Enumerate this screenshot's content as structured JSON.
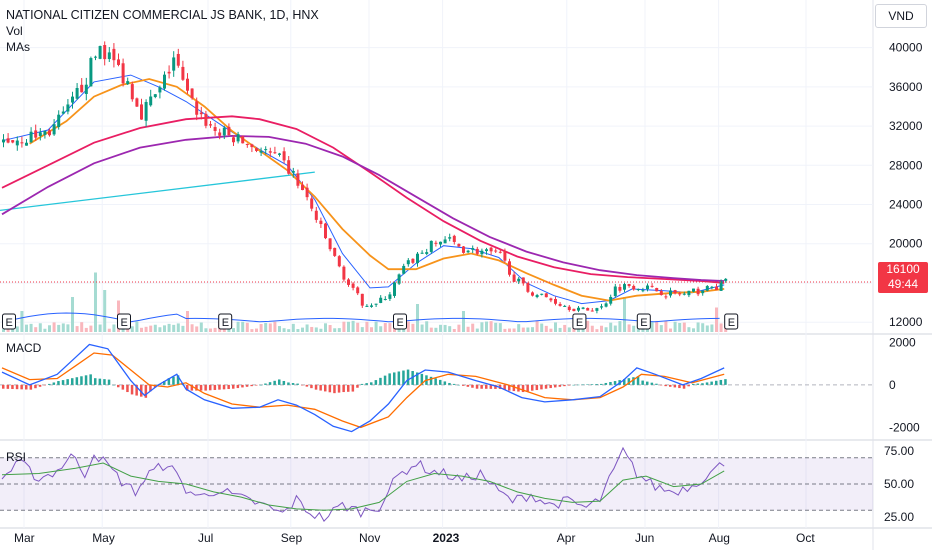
{
  "header": {
    "title": "NATIONAL CITIZEN COMMERCIAL JS BANK, 1D, HNX",
    "vol_label": "Vol",
    "mas_label": "MAs",
    "currency": "VND"
  },
  "price_badge": {
    "price": "16100",
    "countdown": "49:44"
  },
  "colors": {
    "candle_up": "#089981",
    "candle_down": "#f23645",
    "ma_fast": "#2962ff",
    "ma_orange": "#f7931a",
    "ma_red": "#e91e63",
    "ma_purple": "#9c27b0",
    "trendline": "#26c6da",
    "rsi_line": "#7e57c2",
    "rsi_ma": "#43a047",
    "macd_line": "#2962ff",
    "signal_line": "#ff6d00"
  },
  "chart_data": [
    {
      "type": "candlestick",
      "ylim": [
        11000,
        42000
      ],
      "y_ticks": [
        12000,
        16000,
        20000,
        24000,
        28000,
        32000,
        36000,
        40000
      ],
      "x_ticks": [
        "Mar",
        "May",
        "Jul",
        "Sep",
        "Nov",
        "2023",
        "Apr",
        "Jun",
        "Aug",
        "Oct"
      ],
      "last_price": 16100,
      "earnings_markers": [
        "E",
        "E",
        "E",
        "E",
        "E",
        "E",
        "E"
      ],
      "close_path": [
        [
          0,
          30500
        ],
        [
          5,
          30800
        ],
        [
          10,
          31500
        ],
        [
          14,
          33500
        ],
        [
          18,
          37000
        ],
        [
          21,
          40200
        ],
        [
          24,
          38500
        ],
        [
          27,
          36500
        ],
        [
          30,
          33500
        ],
        [
          34,
          35500
        ],
        [
          37,
          39000
        ],
        [
          40,
          35000
        ],
        [
          43,
          33000
        ],
        [
          46,
          31500
        ],
        [
          50,
          30800
        ],
        [
          55,
          29800
        ],
        [
          60,
          28500
        ],
        [
          63,
          27000
        ],
        [
          66,
          24500
        ],
        [
          69,
          21500
        ],
        [
          72,
          18500
        ],
        [
          75,
          15800
        ],
        [
          78,
          14000
        ],
        [
          81,
          13800
        ],
        [
          84,
          15000
        ],
        [
          87,
          17500
        ],
        [
          90,
          18800
        ],
        [
          93,
          19800
        ],
        [
          96,
          20500
        ],
        [
          100,
          19500
        ],
        [
          104,
          19200
        ],
        [
          108,
          18800
        ],
        [
          111,
          16500
        ],
        [
          114,
          15200
        ],
        [
          118,
          14500
        ],
        [
          122,
          13700
        ],
        [
          126,
          13200
        ],
        [
          130,
          13500
        ],
        [
          133,
          15500
        ],
        [
          136,
          15800
        ],
        [
          140,
          15500
        ],
        [
          144,
          15000
        ],
        [
          148,
          14800
        ],
        [
          151,
          15200
        ],
        [
          155,
          15600
        ],
        [
          157,
          16100
        ]
      ],
      "volume_spikes": [
        [
          4,
          0.3
        ],
        [
          15,
          0.5
        ],
        [
          20,
          0.85
        ],
        [
          22,
          0.6
        ],
        [
          25,
          0.45
        ],
        [
          40,
          0.3
        ],
        [
          90,
          0.4
        ],
        [
          100,
          0.3
        ],
        [
          135,
          0.5
        ],
        [
          155,
          0.35
        ]
      ],
      "moving_averages": [
        {
          "color": "ma_fast",
          "values": [
            [
              0,
              30500
            ],
            [
              10,
              31600
            ],
            [
              20,
              36500
            ],
            [
              28,
              37200
            ],
            [
              34,
              36000
            ],
            [
              40,
              34500
            ],
            [
              48,
              32000
            ],
            [
              56,
              29600
            ],
            [
              62,
              28000
            ],
            [
              68,
              24500
            ],
            [
              74,
              19000
            ],
            [
              80,
              15500
            ],
            [
              84,
              15600
            ],
            [
              90,
              18000
            ],
            [
              96,
              19800
            ],
            [
              102,
              19500
            ],
            [
              108,
              18600
            ],
            [
              114,
              16000
            ],
            [
              120,
              14700
            ],
            [
              126,
              13900
            ],
            [
              132,
              14200
            ],
            [
              137,
              15400
            ],
            [
              144,
              15200
            ],
            [
              150,
              15000
            ],
            [
              157,
              15800
            ]
          ]
        },
        {
          "color": "ma_orange",
          "values": [
            [
              6,
              30200
            ],
            [
              14,
              32500
            ],
            [
              20,
              35000
            ],
            [
              26,
              36200
            ],
            [
              32,
              36800
            ],
            [
              38,
              36000
            ],
            [
              44,
              34000
            ],
            [
              50,
              31500
            ],
            [
              56,
              29500
            ],
            [
              62,
              27500
            ],
            [
              68,
              24800
            ],
            [
              74,
              21500
            ],
            [
              80,
              18800
            ],
            [
              84,
              17400
            ],
            [
              90,
              17400
            ],
            [
              96,
              18500
            ],
            [
              102,
              19000
            ],
            [
              108,
              18300
            ],
            [
              114,
              17000
            ],
            [
              120,
              15800
            ],
            [
              126,
              14700
            ],
            [
              132,
              14200
            ],
            [
              138,
              14700
            ],
            [
              146,
              15000
            ],
            [
              152,
              15100
            ],
            [
              157,
              15400
            ]
          ]
        },
        {
          "color": "ma_red",
          "values": [
            [
              0,
              25700
            ],
            [
              10,
              28000
            ],
            [
              20,
              30300
            ],
            [
              30,
              31800
            ],
            [
              40,
              32700
            ],
            [
              50,
              33000
            ],
            [
              56,
              32700
            ],
            [
              64,
              31700
            ],
            [
              72,
              29800
            ],
            [
              80,
              27300
            ],
            [
              88,
              24700
            ],
            [
              96,
              22300
            ],
            [
              104,
              20300
            ],
            [
              112,
              18700
            ],
            [
              120,
              17600
            ],
            [
              128,
              16900
            ],
            [
              136,
              16600
            ],
            [
              144,
              16400
            ],
            [
              152,
              16200
            ],
            [
              157,
              16000
            ]
          ]
        },
        {
          "color": "ma_purple",
          "values": [
            [
              0,
              23000
            ],
            [
              10,
              25800
            ],
            [
              20,
              28200
            ],
            [
              30,
              29800
            ],
            [
              40,
              30600
            ],
            [
              50,
              31000
            ],
            [
              58,
              30900
            ],
            [
              66,
              30200
            ],
            [
              74,
              28900
            ],
            [
              82,
              27000
            ],
            [
              90,
              24800
            ],
            [
              98,
              22600
            ],
            [
              106,
              20700
            ],
            [
              114,
              19200
            ],
            [
              122,
              18100
            ],
            [
              130,
              17300
            ],
            [
              138,
              16800
            ],
            [
              146,
              16500
            ],
            [
              152,
              16300
            ],
            [
              157,
              16200
            ]
          ]
        }
      ]
    },
    {
      "type": "line",
      "name": "MACD",
      "ylim": [
        -2500,
        2300
      ],
      "y_ticks": [
        2000,
        0,
        -2000
      ],
      "macd": [
        [
          0,
          600
        ],
        [
          6,
          0
        ],
        [
          12,
          500
        ],
        [
          16,
          1300
        ],
        [
          19,
          1900
        ],
        [
          23,
          1700
        ],
        [
          28,
          200
        ],
        [
          31,
          -500
        ],
        [
          34,
          0
        ],
        [
          38,
          500
        ],
        [
          40,
          -200
        ],
        [
          44,
          -700
        ],
        [
          50,
          -1100
        ],
        [
          56,
          -1050
        ],
        [
          60,
          -700
        ],
        [
          64,
          -950
        ],
        [
          68,
          -1400
        ],
        [
          72,
          -1950
        ],
        [
          76,
          -2200
        ],
        [
          80,
          -1700
        ],
        [
          84,
          -900
        ],
        [
          88,
          200
        ],
        [
          92,
          700
        ],
        [
          97,
          600
        ],
        [
          103,
          200
        ],
        [
          108,
          -100
        ],
        [
          113,
          -600
        ],
        [
          118,
          -800
        ],
        [
          124,
          -700
        ],
        [
          130,
          -550
        ],
        [
          135,
          200
        ],
        [
          138,
          800
        ],
        [
          142,
          500
        ],
        [
          148,
          0
        ],
        [
          152,
          300
        ],
        [
          157,
          800
        ]
      ],
      "signal": [
        [
          0,
          800
        ],
        [
          6,
          250
        ],
        [
          12,
          300
        ],
        [
          16,
          900
        ],
        [
          20,
          1500
        ],
        [
          24,
          1400
        ],
        [
          28,
          700
        ],
        [
          32,
          0
        ],
        [
          36,
          -100
        ],
        [
          40,
          100
        ],
        [
          44,
          -400
        ],
        [
          50,
          -900
        ],
        [
          56,
          -1050
        ],
        [
          62,
          -950
        ],
        [
          68,
          -1150
        ],
        [
          74,
          -1700
        ],
        [
          78,
          -2000
        ],
        [
          84,
          -1500
        ],
        [
          88,
          -600
        ],
        [
          92,
          200
        ],
        [
          97,
          500
        ],
        [
          103,
          400
        ],
        [
          110,
          0
        ],
        [
          118,
          -600
        ],
        [
          124,
          -700
        ],
        [
          130,
          -600
        ],
        [
          135,
          -100
        ],
        [
          139,
          500
        ],
        [
          144,
          400
        ],
        [
          150,
          100
        ],
        [
          157,
          500
        ]
      ]
    },
    {
      "type": "line",
      "name": "RSI",
      "ylim": [
        18,
        82
      ],
      "y_ticks": [
        75,
        50,
        25
      ],
      "band": [
        30,
        70
      ],
      "rsi": [
        [
          0,
          55
        ],
        [
          4,
          66
        ],
        [
          8,
          54
        ],
        [
          12,
          60
        ],
        [
          15,
          72
        ],
        [
          18,
          58
        ],
        [
          20,
          74
        ],
        [
          23,
          64
        ],
        [
          26,
          52
        ],
        [
          29,
          44
        ],
        [
          32,
          58
        ],
        [
          36,
          66
        ],
        [
          40,
          46
        ],
        [
          43,
          40
        ],
        [
          47,
          46
        ],
        [
          51,
          40
        ],
        [
          55,
          36
        ],
        [
          58,
          32
        ],
        [
          61,
          27
        ],
        [
          64,
          38
        ],
        [
          67,
          28
        ],
        [
          70,
          24
        ],
        [
          74,
          34
        ],
        [
          78,
          29
        ],
        [
          82,
          33
        ],
        [
          86,
          56
        ],
        [
          90,
          66
        ],
        [
          93,
          60
        ],
        [
          96,
          58
        ],
        [
          100,
          53
        ],
        [
          104,
          58
        ],
        [
          108,
          44
        ],
        [
          111,
          37
        ],
        [
          115,
          42
        ],
        [
          119,
          34
        ],
        [
          123,
          37
        ],
        [
          127,
          32
        ],
        [
          130,
          38
        ],
        [
          133,
          60
        ],
        [
          135,
          75
        ],
        [
          138,
          58
        ],
        [
          142,
          48
        ],
        [
          146,
          44
        ],
        [
          150,
          49
        ],
        [
          153,
          56
        ],
        [
          157,
          66
        ]
      ],
      "rsi_ma": [
        [
          0,
          57
        ],
        [
          8,
          58
        ],
        [
          16,
          62
        ],
        [
          22,
          66
        ],
        [
          28,
          56
        ],
        [
          34,
          52
        ],
        [
          40,
          50
        ],
        [
          46,
          44
        ],
        [
          52,
          40
        ],
        [
          58,
          34
        ],
        [
          64,
          31
        ],
        [
          70,
          30
        ],
        [
          76,
          31
        ],
        [
          82,
          36
        ],
        [
          88,
          52
        ],
        [
          94,
          58
        ],
        [
          100,
          56
        ],
        [
          106,
          52
        ],
        [
          112,
          44
        ],
        [
          118,
          39
        ],
        [
          124,
          36
        ],
        [
          130,
          37
        ],
        [
          135,
          53
        ],
        [
          140,
          56
        ],
        [
          146,
          48
        ],
        [
          152,
          50
        ],
        [
          157,
          60
        ]
      ]
    }
  ]
}
